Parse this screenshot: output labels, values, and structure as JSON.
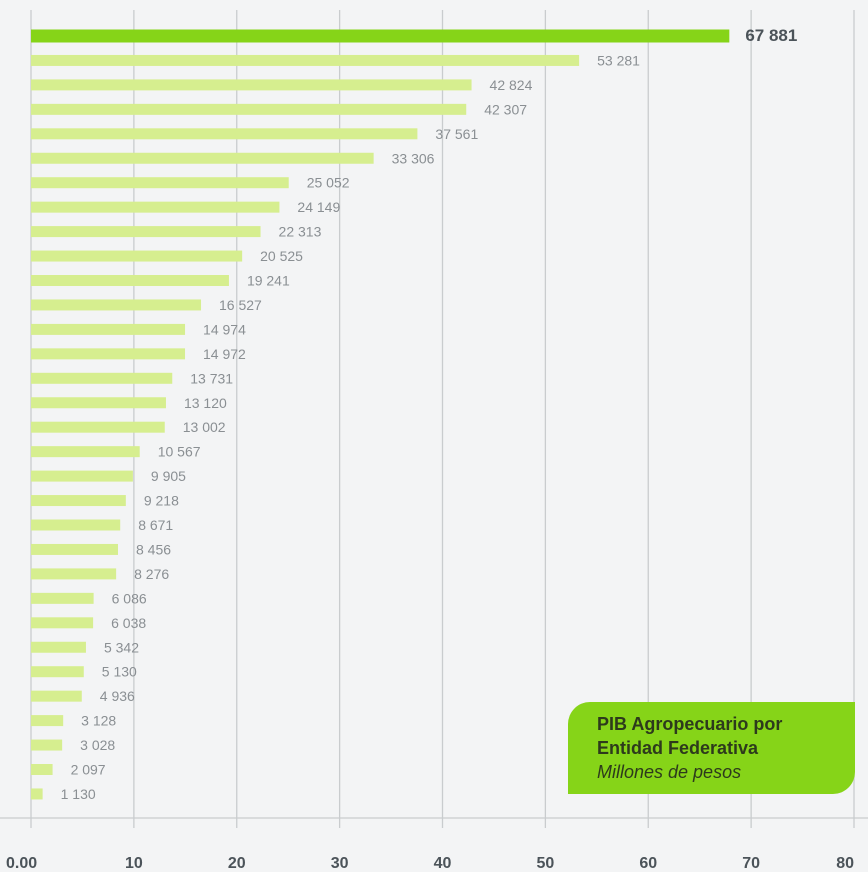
{
  "chart_data": {
    "type": "bar",
    "orientation": "horizontal",
    "values": [
      67881,
      53281,
      42824,
      42307,
      37561,
      33306,
      25052,
      24149,
      22313,
      20525,
      19241,
      16527,
      14974,
      14972,
      13731,
      13120,
      13002,
      10567,
      9905,
      9218,
      8671,
      8456,
      8276,
      6086,
      6038,
      5342,
      5130,
      4936,
      3128,
      3028,
      2097,
      1130
    ],
    "value_labels": [
      "67 881",
      "53 281",
      "42 824",
      "42 307",
      "37 561",
      "33 306",
      "25 052",
      "24 149",
      "22 313",
      "20 525",
      "19 241",
      "16 527",
      "14 974",
      "14 972",
      "13 731",
      "13 120",
      "13 002",
      "10 567",
      "9 905",
      "9 218",
      "8 671",
      "8 456",
      "8 276",
      "6 086",
      "6 038",
      "5 342",
      "5 130",
      "4 936",
      "3 128",
      "3 028",
      "2 097",
      "1 130"
    ],
    "x_ticks": [
      "0.00",
      "10",
      "20",
      "30",
      "40",
      "50",
      "60",
      "70",
      "80"
    ],
    "xlim": [
      0,
      80000
    ],
    "grid": true,
    "colors": {
      "highlight": "#86d418",
      "bar": "#d6ee8f",
      "grid": "#c9ccce",
      "label": "#8a8f93",
      "highlight_label": "#4b5359",
      "tick": "#4b5359"
    }
  },
  "legend": {
    "line1": "PIB Agropecuario por",
    "line2": "Entidad Federativa",
    "unit": "Millones de pesos"
  }
}
